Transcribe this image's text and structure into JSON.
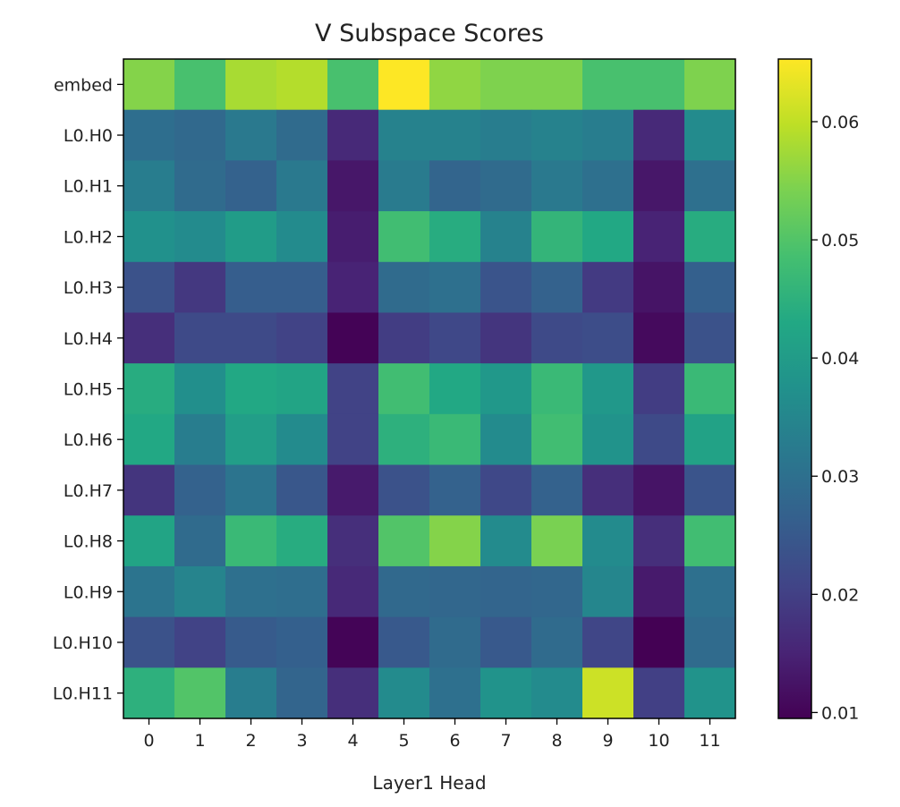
{
  "chart_data": {
    "type": "heatmap",
    "title": "V Subspace Scores",
    "xlabel": "Layer1 Head",
    "ylabel": "",
    "x_categories": [
      "0",
      "1",
      "2",
      "3",
      "4",
      "5",
      "6",
      "7",
      "8",
      "9",
      "10",
      "11"
    ],
    "y_categories": [
      "embed",
      "L0.H0",
      "L0.H1",
      "L0.H2",
      "L0.H3",
      "L0.H4",
      "L0.H5",
      "L0.H6",
      "L0.H7",
      "L0.H8",
      "L0.H9",
      "L0.H10",
      "L0.H11"
    ],
    "colormap": "viridis",
    "color_range": [
      0.0095,
      0.0653
    ],
    "colorbar_ticks": [
      "0.01",
      "0.02",
      "0.03",
      "0.04",
      "0.05",
      "0.06"
    ],
    "values": [
      [
        0.055,
        0.049,
        0.058,
        0.059,
        0.049,
        0.0653,
        0.056,
        0.0545,
        0.0545,
        0.049,
        0.049,
        0.0545
      ],
      [
        0.0296,
        0.0285,
        0.032,
        0.029,
        0.016,
        0.034,
        0.034,
        0.033,
        0.034,
        0.033,
        0.016,
        0.036
      ],
      [
        0.033,
        0.029,
        0.027,
        0.032,
        0.013,
        0.0325,
        0.0275,
        0.029,
        0.032,
        0.03,
        0.013,
        0.03
      ],
      [
        0.0375,
        0.036,
        0.04,
        0.036,
        0.014,
        0.048,
        0.044,
        0.034,
        0.046,
        0.043,
        0.015,
        0.044
      ],
      [
        0.0235,
        0.0185,
        0.026,
        0.026,
        0.015,
        0.029,
        0.03,
        0.024,
        0.027,
        0.019,
        0.0125,
        0.0265
      ],
      [
        0.017,
        0.022,
        0.022,
        0.0205,
        0.0098,
        0.0195,
        0.0215,
        0.018,
        0.022,
        0.0225,
        0.011,
        0.0235
      ],
      [
        0.044,
        0.037,
        0.043,
        0.042,
        0.0205,
        0.048,
        0.043,
        0.039,
        0.047,
        0.039,
        0.0195,
        0.047
      ],
      [
        0.043,
        0.033,
        0.0405,
        0.036,
        0.0205,
        0.045,
        0.047,
        0.036,
        0.048,
        0.038,
        0.022,
        0.0415
      ],
      [
        0.018,
        0.027,
        0.031,
        0.0245,
        0.0135,
        0.0235,
        0.027,
        0.0215,
        0.027,
        0.017,
        0.0125,
        0.024
      ],
      [
        0.042,
        0.029,
        0.047,
        0.044,
        0.017,
        0.05,
        0.055,
        0.036,
        0.054,
        0.036,
        0.017,
        0.048
      ],
      [
        0.031,
        0.0345,
        0.03,
        0.0295,
        0.016,
        0.0285,
        0.028,
        0.0275,
        0.028,
        0.035,
        0.0135,
        0.03
      ],
      [
        0.0235,
        0.0205,
        0.0255,
        0.0265,
        0.01,
        0.025,
        0.029,
        0.025,
        0.029,
        0.021,
        0.0095,
        0.029
      ],
      [
        0.045,
        0.05,
        0.033,
        0.0275,
        0.017,
        0.036,
        0.03,
        0.038,
        0.036,
        0.061,
        0.02,
        0.038
      ]
    ]
  }
}
